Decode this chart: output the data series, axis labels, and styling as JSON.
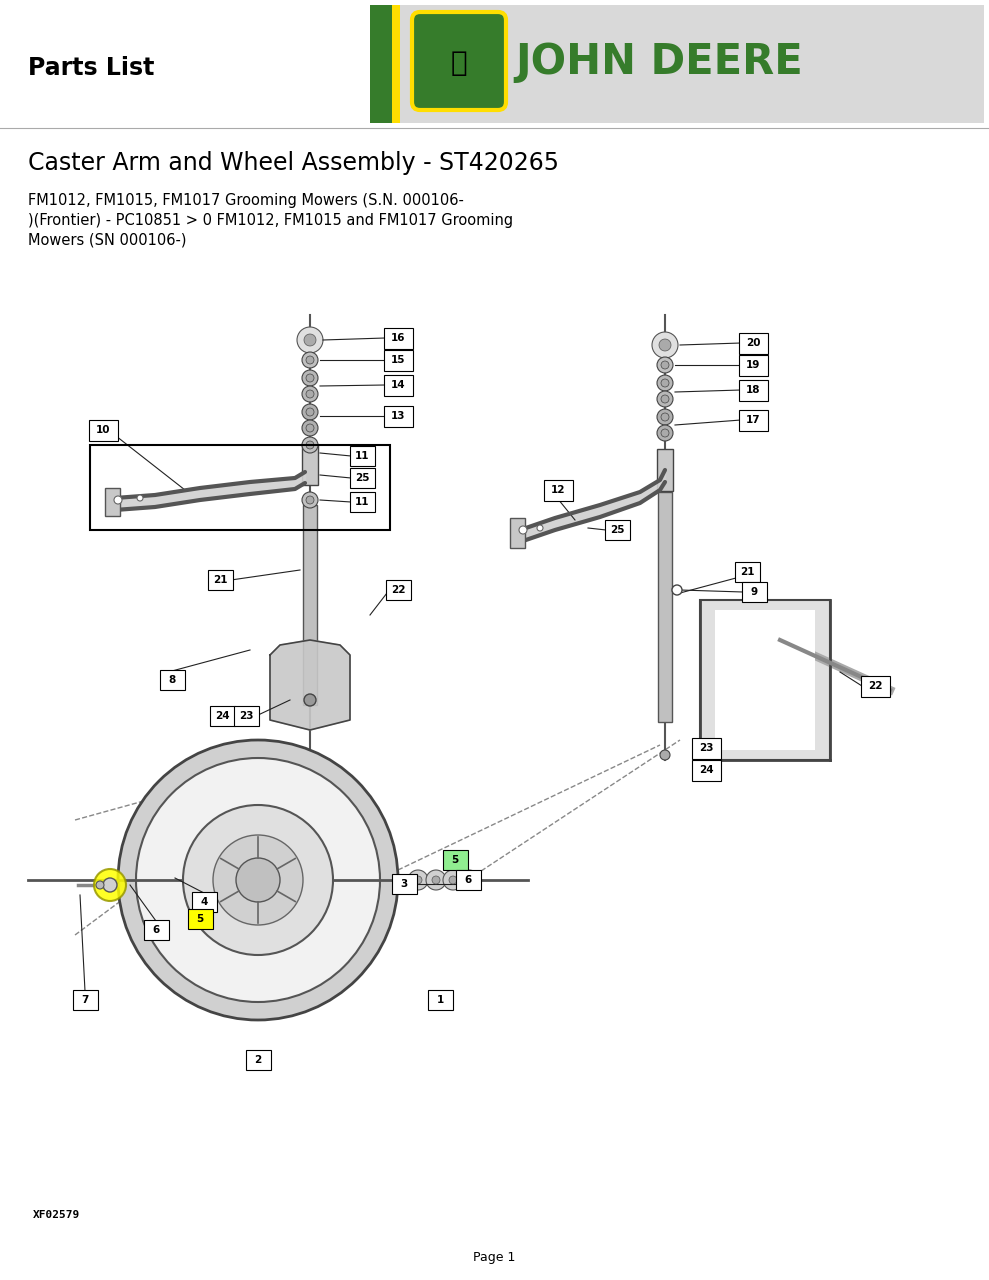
{
  "title": "Caster Arm and Wheel Assembly - ST420265",
  "subtitle": "FM1012, FM1015, FM1017 Grooming Mowers (S.N. 000106-\n)(Frontier) - PC10851 > 0 FM1012, FM1015 and FM1017 Grooming\nMowers (SN 000106-)",
  "parts_list_label": "Parts List",
  "page_label": "Page 1",
  "doc_number": "XF02579",
  "header_bg_color": "#d9d9d9",
  "jd_green": "#367c2b",
  "jd_yellow": "#ffde00",
  "white": "#ffffff",
  "black": "#000000",
  "highlight_yellow": "#ffff00",
  "highlight_green": "#90ee90",
  "bg_color": "#ffffff",
  "line_color": "#222222",
  "part_fill": "#e8e8e8",
  "part_stroke": "#333333"
}
